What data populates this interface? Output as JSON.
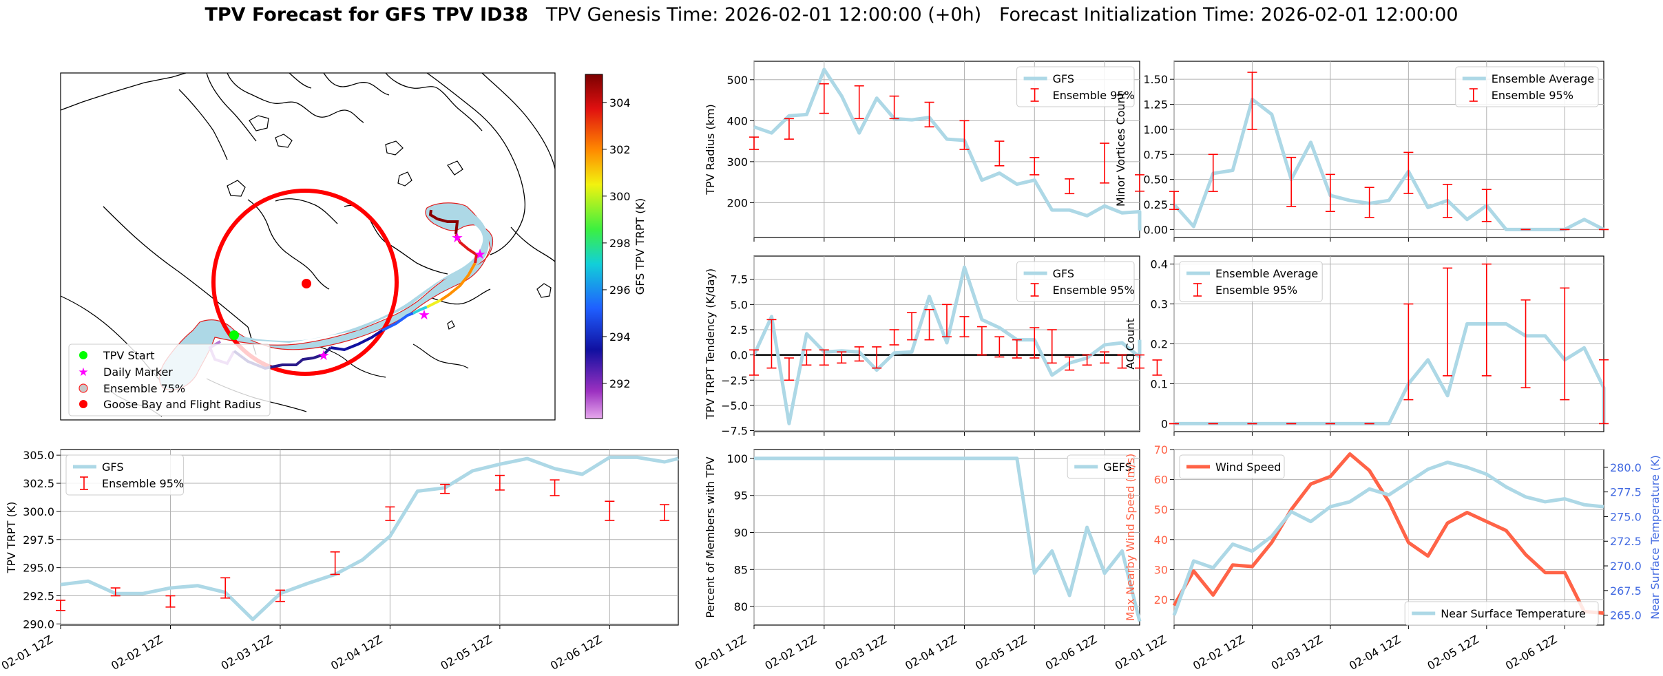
{
  "title": {
    "bold": "TPV Forecast for GFS TPV ID38",
    "genesis": "TPV Genesis Time: 2026-02-01 12:00:00 (+0h)",
    "init": "Forecast Initialization Time: 2026-02-01 12:00:00"
  },
  "colors": {
    "gfs_line": "#add8e6",
    "ensemble_err": "#ff0000",
    "wind": "#ff6347",
    "temp_axis": "#4169e1",
    "track_buffer": "#add8e6",
    "radius_circle": "#ff0000",
    "start_marker": "#00ff00",
    "daily_marker": "#ff00ff"
  },
  "map": {
    "colorbar": {
      "label": "GFS TPV TRPT (K)",
      "ticks": [
        292,
        294,
        296,
        298,
        300,
        302,
        304
      ],
      "range": [
        290.5,
        305.2
      ]
    },
    "legend": [
      "TPV Start",
      "Daily Marker",
      "Ensemble 75%",
      "Goose Bay and Flight Radius"
    ]
  },
  "chart_data": [
    {
      "id": "radius",
      "type": "line",
      "ylabel": "TPV Radius (km)",
      "ylim": [
        115,
        545
      ],
      "yticks": [
        200,
        300,
        400,
        500
      ],
      "xlim": [
        0,
        22
      ],
      "xticks": [
        0,
        4,
        8,
        12,
        16,
        20
      ],
      "xticklabels": [],
      "legend": [
        "GFS",
        "Ensemble 95%"
      ],
      "legend_pos": "top-right",
      "series": [
        {
          "name": "GFS",
          "values": [
            385,
            370,
            412,
            415,
            525,
            460,
            370,
            455,
            405,
            402,
            408,
            355,
            352,
            255,
            272,
            245,
            255,
            182,
            182,
            168,
            192,
            175,
            178,
            132
          ]
        }
      ],
      "errorbars": [
        [
          0,
          360,
          330
        ],
        [
          2,
          405,
          355
        ],
        [
          4,
          490,
          418
        ],
        [
          6,
          485,
          405
        ],
        [
          8,
          460,
          405
        ],
        [
          10,
          445,
          385
        ],
        [
          12,
          400,
          330
        ],
        [
          14,
          350,
          290
        ],
        [
          16,
          310,
          268
        ],
        [
          18,
          258,
          222
        ],
        [
          20,
          345,
          248
        ],
        [
          22,
          268,
          228
        ]
      ]
    },
    {
      "id": "minor",
      "type": "line",
      "ylabel": "Minor Vortices Count",
      "ylim": [
        -0.08,
        1.68
      ],
      "yticks": [
        0.0,
        0.25,
        0.5,
        0.75,
        1.0,
        1.25,
        1.5
      ],
      "yticklabels": [
        "0.00",
        "0.25",
        "0.50",
        "0.75",
        "1.00",
        "1.25",
        "1.50"
      ],
      "xlim": [
        0,
        22
      ],
      "xticks": [
        0,
        4,
        8,
        12,
        16,
        20
      ],
      "xticklabels": [],
      "legend": [
        "Ensemble Average",
        "Ensemble 95%"
      ],
      "legend_pos": "top-right",
      "series": [
        {
          "name": "Ensemble Average",
          "values": [
            0.25,
            0.03,
            0.56,
            0.59,
            1.3,
            1.15,
            0.5,
            0.87,
            0.34,
            0.29,
            0.26,
            0.29,
            0.58,
            0.22,
            0.29,
            0.1,
            0.24,
            0.0,
            0.0,
            0.0,
            0.0,
            0.1,
            0.0,
            0.0
          ]
        }
      ],
      "errorbars": [
        [
          0,
          0.38,
          0.2
        ],
        [
          2,
          0.75,
          0.38
        ],
        [
          4,
          1.57,
          1.0
        ],
        [
          6,
          0.72,
          0.23
        ],
        [
          8,
          0.55,
          0.18
        ],
        [
          10,
          0.42,
          0.12
        ],
        [
          12,
          0.77,
          0.36
        ],
        [
          14,
          0.45,
          0.12
        ],
        [
          16,
          0.4,
          0.08
        ],
        [
          18,
          0.0,
          0.0
        ],
        [
          20,
          0.0,
          0.0
        ],
        [
          22,
          0.0,
          0.0
        ]
      ]
    },
    {
      "id": "tendency",
      "type": "line",
      "ylabel": "TPV TRPT Tendency (K/day)",
      "ylim": [
        -7.6,
        9.8
      ],
      "yticks": [
        -7.5,
        -5.0,
        -2.5,
        0.0,
        2.5,
        5.0,
        7.5
      ],
      "yticklabels": [
        "−7.5",
        "−5.0",
        "−2.5",
        "0.0",
        "2.5",
        "5.0",
        "7.5"
      ],
      "xlim": [
        0,
        22
      ],
      "xticks": [
        0,
        4,
        8,
        12,
        16,
        20
      ],
      "xticklabels": [],
      "legend": [
        "GFS",
        "Ensemble 95%"
      ],
      "legend_pos": "top-right",
      "zero_line": true,
      "series": [
        {
          "name": "GFS",
          "values": [
            0,
            3.8,
            -6.8,
            2.1,
            0.3,
            0.4,
            0.3,
            -1.5,
            0.2,
            0.3,
            5.8,
            1.2,
            8.7,
            3.5,
            2.7,
            1.5,
            1.5,
            -2.0,
            -0.8,
            -0.3,
            1.0,
            1.2,
            -0.2,
            1.5
          ]
        }
      ],
      "errorbars": [
        [
          0,
          0.5,
          -2.0
        ],
        [
          1,
          3.5,
          -1.3
        ],
        [
          2,
          -0.3,
          -2.5
        ],
        [
          3,
          0.5,
          -1.0
        ],
        [
          4,
          0.5,
          -1.0
        ],
        [
          5,
          0.3,
          -0.8
        ],
        [
          6,
          0.8,
          -0.6
        ],
        [
          7,
          0.8,
          -1.3
        ],
        [
          8,
          2.5,
          1.0
        ],
        [
          9,
          4.2,
          1.5
        ],
        [
          10,
          4.5,
          1.5
        ],
        [
          11,
          5.0,
          1.8
        ],
        [
          12,
          3.8,
          1.8
        ],
        [
          13,
          2.8,
          0.0
        ],
        [
          14,
          1.8,
          -0.2
        ],
        [
          15,
          1.5,
          -0.3
        ],
        [
          16,
          2.7,
          -0.3
        ],
        [
          17,
          2.5,
          -0.8
        ],
        [
          18,
          -0.2,
          -1.5
        ],
        [
          19,
          0.0,
          -1.0
        ],
        [
          20,
          0.3,
          -0.8
        ],
        [
          21,
          0.0,
          -1.3
        ],
        [
          22,
          0.0,
          -1.3
        ],
        [
          23,
          -0.5,
          -2.0
        ]
      ]
    },
    {
      "id": "ac",
      "type": "line",
      "ylabel": "AC Count",
      "ylim": [
        -0.02,
        0.42
      ],
      "yticks": [
        0.0,
        0.1,
        0.2,
        0.3,
        0.4
      ],
      "xlim": [
        0,
        22
      ],
      "xticks": [
        0,
        4,
        8,
        12,
        16,
        20
      ],
      "xticklabels": [],
      "legend": [
        "Ensemble Average",
        "Ensemble 95%"
      ],
      "legend_pos": "top-left",
      "series": [
        {
          "name": "Ensemble Average",
          "values": [
            0,
            0,
            0,
            0,
            0,
            0,
            0,
            0,
            0,
            0,
            0,
            0,
            0.1,
            0.16,
            0.07,
            0.25,
            0.25,
            0.25,
            0.22,
            0.22,
            0.16,
            0.19,
            0.09,
            0.05,
            0.0
          ]
        }
      ],
      "errorbars": [
        [
          0,
          0,
          0
        ],
        [
          2,
          0,
          0
        ],
        [
          4,
          0,
          0
        ],
        [
          6,
          0,
          0
        ],
        [
          8,
          0,
          0
        ],
        [
          10,
          0,
          0
        ],
        [
          12,
          0.3,
          0.06
        ],
        [
          14,
          0.39,
          0.12
        ],
        [
          16,
          0.4,
          0.12
        ],
        [
          18,
          0.31,
          0.09
        ],
        [
          20,
          0.34,
          0.06
        ],
        [
          22,
          0.16,
          0.0
        ]
      ]
    },
    {
      "id": "trpt",
      "type": "line",
      "ylabel": "TPV TRPT (K)",
      "ylim": [
        289.9,
        305.5
      ],
      "yticks": [
        290.0,
        292.5,
        295.0,
        297.5,
        300.0,
        302.5,
        305.0
      ],
      "yticklabels": [
        "290.0",
        "292.5",
        "295.0",
        "297.5",
        "300.0",
        "302.5",
        "305.0"
      ],
      "xlim": [
        0,
        22.5
      ],
      "xticks": [
        0,
        4,
        8,
        12,
        16,
        20
      ],
      "xticklabels": [
        "02-01 12Z",
        "02-02 12Z",
        "02-03 12Z",
        "02-04 12Z",
        "02-05 12Z",
        "02-06 12Z"
      ],
      "legend": [
        "GFS",
        "Ensemble 95%"
      ],
      "legend_pos": "top-left",
      "series": [
        {
          "name": "GFS",
          "values": [
            293.5,
            293.8,
            292.7,
            292.7,
            293.2,
            293.4,
            292.8,
            290.4,
            292.7,
            293.6,
            294.4,
            295.7,
            297.8,
            301.8,
            302.1,
            303.6,
            304.2,
            304.7,
            303.8,
            303.3,
            304.8,
            304.8,
            304.4,
            304.7
          ]
        }
      ],
      "errorbars": [
        [
          0,
          292.1,
          291.2
        ],
        [
          2,
          293.2,
          292.5
        ],
        [
          4,
          292.5,
          291.5
        ],
        [
          6,
          294.1,
          292.3
        ],
        [
          8,
          293.0,
          292.0
        ],
        [
          10,
          296.4,
          294.4
        ],
        [
          12,
          300.4,
          299.2
        ],
        [
          14,
          302.4,
          301.6
        ],
        [
          16,
          303.2,
          301.9
        ],
        [
          18,
          302.8,
          301.4
        ],
        [
          20,
          300.9,
          299.2
        ],
        [
          22,
          300.6,
          299.2
        ]
      ]
    },
    {
      "id": "members",
      "type": "line",
      "ylabel": "Percent of Members with TPV",
      "ylim": [
        77.5,
        101.2
      ],
      "yticks": [
        80,
        85,
        90,
        95,
        100
      ],
      "xlim": [
        0,
        22
      ],
      "xticks": [
        0,
        4,
        8,
        12,
        16,
        20
      ],
      "xticklabels": [
        "02-01 12Z",
        "02-02 12Z",
        "02-03 12Z",
        "02-04 12Z",
        "02-05 12Z",
        "02-06 12Z"
      ],
      "legend": [
        "GEFS"
      ],
      "legend_pos": "top-right",
      "series": [
        {
          "name": "GEFS",
          "values": [
            100,
            100,
            100,
            100,
            100,
            100,
            100,
            100,
            100,
            100,
            100,
            100,
            100,
            100,
            100,
            100,
            84.5,
            87.5,
            81.5,
            90.7,
            84.5,
            87.5,
            78.0
          ]
        }
      ]
    },
    {
      "id": "wind_temp",
      "type": "line",
      "ylabel": "Max Nearby Wind Speed (m/s)",
      "ylim": [
        11.5,
        70
      ],
      "yticks": [
        20,
        30,
        40,
        50,
        60,
        70
      ],
      "y2label": "Near Surface Temperature (K)",
      "y2lim": [
        264.0,
        281.8
      ],
      "y2ticks": [
        265.0,
        267.5,
        270.0,
        272.5,
        275.0,
        277.5,
        280.0
      ],
      "y2ticklabels": [
        "265.0",
        "267.5",
        "270.0",
        "272.5",
        "275.0",
        "277.5",
        "280.0"
      ],
      "xlim": [
        0,
        22
      ],
      "xticks": [
        0,
        4,
        8,
        12,
        16,
        20
      ],
      "xticklabels": [
        "02-01 12Z",
        "02-02 12Z",
        "02-03 12Z",
        "02-04 12Z",
        "02-05 12Z",
        "02-06 12Z"
      ],
      "legend": [
        "Wind Speed"
      ],
      "legend2": [
        "Near Surface Temperature"
      ],
      "series": [
        {
          "name": "Wind Speed",
          "axis": "left",
          "values": [
            18,
            29.5,
            21.5,
            31.5,
            31,
            39,
            50,
            58.5,
            61,
            68.5,
            63,
            52.5,
            39,
            34.5,
            45.5,
            49,
            46,
            43,
            35,
            29,
            29,
            16,
            15.5,
            15.5
          ]
        },
        {
          "name": "Near Surface Temperature",
          "axis": "right",
          "values": [
            265.0,
            270.5,
            269.8,
            272.2,
            271.5,
            273.0,
            275.5,
            274.5,
            276.0,
            276.5,
            277.8,
            277.2,
            278.5,
            279.8,
            280.5,
            280.0,
            279.3,
            278.0,
            277.0,
            276.5,
            276.8,
            276.2,
            276.0,
            276.0
          ]
        }
      ]
    }
  ]
}
